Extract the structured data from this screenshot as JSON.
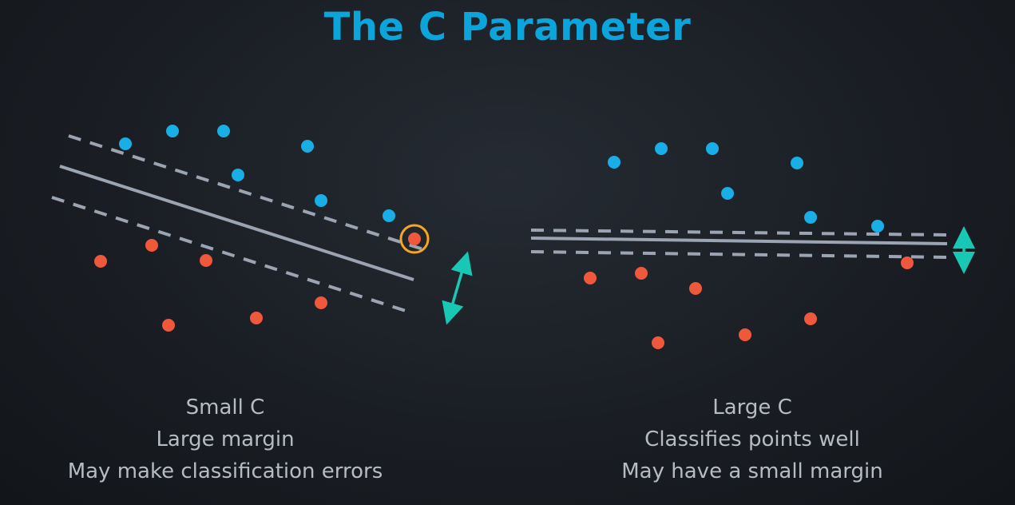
{
  "title": "The C Parameter",
  "colors": {
    "title": "#0ba5dc",
    "class_a": "#19aee6",
    "class_b": "#f0583c",
    "boundary": "#9aa4b2",
    "margin_arrow": "#19c8b4",
    "misclassified_highlight": "#f5a623",
    "caption_text": "#b7bcc3"
  },
  "panels": [
    {
      "id": "small-c",
      "caption": {
        "line1": "Small C",
        "line2": "Large margin",
        "line3": "May make classification errors"
      }
    },
    {
      "id": "large-c",
      "caption": {
        "line1": "Large C",
        "line2": "Classifies points well",
        "line3": "May have a small margin"
      }
    }
  ],
  "icons": {
    "margin_arrow": "double-headed-arrow-icon",
    "misclassified_marker": "circle-highlight-icon"
  }
}
